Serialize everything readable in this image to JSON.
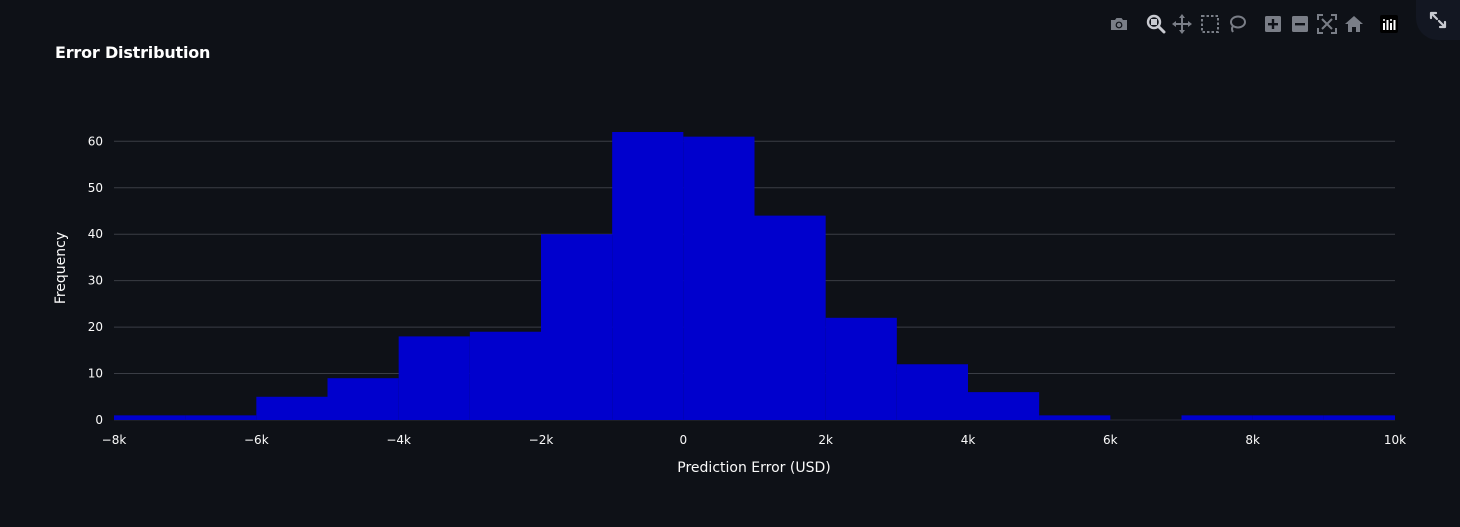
{
  "header": {
    "title": "Error Distribution"
  },
  "toolbar": {
    "items": [
      {
        "name": "camera-icon",
        "label": "Download plot as a png"
      },
      {
        "name": "zoom-icon",
        "label": "Zoom"
      },
      {
        "name": "pan-icon",
        "label": "Pan"
      },
      {
        "name": "box-select-icon",
        "label": "Box Select"
      },
      {
        "name": "lasso-select-icon",
        "label": "Lasso Select"
      },
      {
        "name": "zoom-in-icon",
        "label": "Zoom in"
      },
      {
        "name": "zoom-out-icon",
        "label": "Zoom out"
      },
      {
        "name": "autoscale-icon",
        "label": "Autoscale"
      },
      {
        "name": "reset-axes-icon",
        "label": "Reset axes"
      },
      {
        "name": "plotly-logo-icon",
        "label": "Produced with Plotly"
      }
    ],
    "fullscreen": "expand-icon"
  },
  "colors": {
    "background": "#0e1117",
    "bar": "#0000cd",
    "grid": "#3a3d45",
    "text": "#fafafa",
    "toolbar_icon": "#7a7e87",
    "toolbar_active": "#c8cad0"
  },
  "chart_data": {
    "type": "bar",
    "title": "Error Distribution",
    "xlabel": "Prediction Error (USD)",
    "ylabel": "Frequency",
    "xlim": [
      -8000,
      10000
    ],
    "ylim": [
      0,
      66
    ],
    "grid": true,
    "x_ticks": [
      {
        "value": -8000,
        "label": "−8k"
      },
      {
        "value": -6000,
        "label": "−6k"
      },
      {
        "value": -4000,
        "label": "−4k"
      },
      {
        "value": -2000,
        "label": "−2k"
      },
      {
        "value": 0,
        "label": "0"
      },
      {
        "value": 2000,
        "label": "2k"
      },
      {
        "value": 4000,
        "label": "4k"
      },
      {
        "value": 6000,
        "label": "6k"
      },
      {
        "value": 8000,
        "label": "8k"
      },
      {
        "value": 10000,
        "label": "10k"
      }
    ],
    "y_ticks": [
      {
        "value": 0,
        "label": "0"
      },
      {
        "value": 10,
        "label": "10"
      },
      {
        "value": 20,
        "label": "20"
      },
      {
        "value": 30,
        "label": "30"
      },
      {
        "value": 40,
        "label": "40"
      },
      {
        "value": 50,
        "label": "50"
      },
      {
        "value": 60,
        "label": "60"
      }
    ],
    "bins": [
      {
        "x0": -8000,
        "x1": -7000,
        "count": 1
      },
      {
        "x0": -7000,
        "x1": -6000,
        "count": 1
      },
      {
        "x0": -6000,
        "x1": -5000,
        "count": 5
      },
      {
        "x0": -5000,
        "x1": -4000,
        "count": 9
      },
      {
        "x0": -4000,
        "x1": -3000,
        "count": 18
      },
      {
        "x0": -3000,
        "x1": -2000,
        "count": 19
      },
      {
        "x0": -2000,
        "x1": -1000,
        "count": 40
      },
      {
        "x0": -1000,
        "x1": 0,
        "count": 62
      },
      {
        "x0": 0,
        "x1": 1000,
        "count": 61
      },
      {
        "x0": 1000,
        "x1": 2000,
        "count": 44
      },
      {
        "x0": 2000,
        "x1": 3000,
        "count": 22
      },
      {
        "x0": 3000,
        "x1": 4000,
        "count": 12
      },
      {
        "x0": 4000,
        "x1": 5000,
        "count": 6
      },
      {
        "x0": 5000,
        "x1": 6000,
        "count": 1
      },
      {
        "x0": 6000,
        "x1": 7000,
        "count": 0
      },
      {
        "x0": 7000,
        "x1": 8000,
        "count": 1
      },
      {
        "x0": 8000,
        "x1": 9000,
        "count": 1
      },
      {
        "x0": 9000,
        "x1": 10000,
        "count": 1
      }
    ]
  }
}
